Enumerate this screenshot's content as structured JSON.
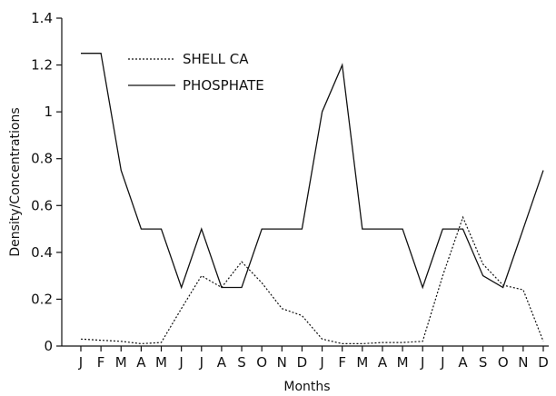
{
  "chart_data": {
    "type": "line",
    "xlabel": "Months",
    "ylabel": "Density/Concentrations",
    "ylim": [
      0,
      1.4
    ],
    "yticks": [
      "0",
      "0.2",
      "0.4",
      "0.6",
      "0.8",
      "1",
      "1.2",
      "1.4"
    ],
    "categories": [
      "J",
      "F",
      "M",
      "A",
      "M",
      "J",
      "J",
      "A",
      "S",
      "O",
      "N",
      "D",
      "J",
      "F",
      "M",
      "A",
      "M",
      "J",
      "J",
      "A",
      "S",
      "O",
      "N",
      "D"
    ],
    "grid": false,
    "legend_position": "top-left",
    "series": [
      {
        "name": "SHELL CA",
        "style": "dotted",
        "color": "#111111",
        "values": [
          0.03,
          0.025,
          0.02,
          0.01,
          0.015,
          0.16,
          0.3,
          0.25,
          0.36,
          0.27,
          0.16,
          0.13,
          0.03,
          0.01,
          0.01,
          0.015,
          0.015,
          0.02,
          0.3,
          0.55,
          0.35,
          0.26,
          0.24,
          0.02
        ]
      },
      {
        "name": "PHOSPHATE",
        "style": "solid",
        "color": "#111111",
        "values": [
          1.25,
          1.25,
          0.75,
          0.5,
          0.5,
          0.25,
          0.5,
          0.25,
          0.25,
          0.5,
          0.5,
          0.5,
          1.0,
          1.2,
          0.5,
          0.5,
          0.5,
          0.25,
          0.5,
          0.5,
          0.3,
          0.25,
          0.5,
          0.75
        ]
      }
    ]
  }
}
